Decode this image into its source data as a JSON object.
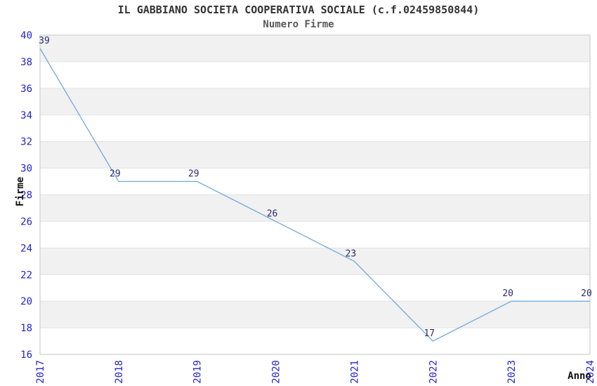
{
  "chart_data": {
    "type": "line",
    "title": "IL GABBIANO SOCIETA COOPERATIVA SOCIALE (c.f.02459850844)",
    "subtitle": "Numero Firme",
    "xlabel": "Anno",
    "ylabel": "Firme",
    "x": [
      "2017",
      "2018",
      "2019",
      "2020",
      "2021",
      "2022",
      "2023",
      "2024"
    ],
    "series": [
      {
        "name": "Numero Firme",
        "values": [
          39,
          29,
          29,
          26,
          23,
          17,
          20,
          20
        ]
      }
    ],
    "data_labels": [
      39,
      29,
      29,
      26,
      23,
      17,
      20,
      20
    ],
    "ylim": [
      16,
      40
    ],
    "yticks": [
      16,
      18,
      20,
      22,
      24,
      26,
      28,
      30,
      32,
      34,
      36,
      38,
      40
    ],
    "grid": "alternating-horizontal-bands",
    "legend": "none",
    "colors": {
      "line": "#74a9dc",
      "tick_label": "#2323cd",
      "data_label": "#2b2b6e",
      "band": "#f1f1f1",
      "gridline": "#e2e2e2",
      "plot_border": "#c6c6c6",
      "title": "#333333",
      "subtitle": "#595959",
      "axis_title": "#111111",
      "background": "#ffffff"
    }
  }
}
